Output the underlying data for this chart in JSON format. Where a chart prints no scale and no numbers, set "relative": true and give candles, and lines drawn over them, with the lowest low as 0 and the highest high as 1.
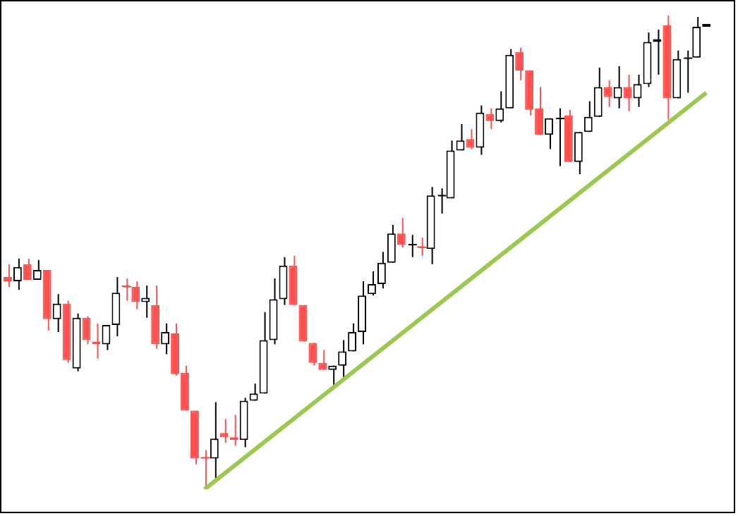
{
  "chart_data": {
    "type": "candlestick",
    "relative": true,
    "categories": [
      null,
      null,
      null,
      null,
      null,
      null,
      null,
      null,
      null,
      null,
      null,
      null,
      null,
      null,
      null,
      null,
      null,
      null,
      null,
      null,
      null,
      null,
      null,
      null,
      null,
      null,
      null,
      null,
      null,
      null,
      null,
      null,
      null,
      null,
      null,
      null,
      null,
      null,
      null,
      null,
      null,
      null,
      null,
      null,
      null,
      null,
      null,
      null,
      null,
      null,
      null,
      null,
      null,
      null,
      null,
      null,
      null,
      null,
      null,
      null,
      null,
      null,
      null,
      null,
      null,
      null,
      null,
      null,
      null,
      null,
      null,
      null
    ],
    "ohlc": [
      [
        0.448,
        0.475,
        0.427,
        0.439
      ],
      [
        0.439,
        0.487,
        0.421,
        0.469
      ],
      [
        0.475,
        0.487,
        0.442,
        0.442
      ],
      [
        0.442,
        0.484,
        0.442,
        0.463
      ],
      [
        0.463,
        0.463,
        0.335,
        0.359
      ],
      [
        0.359,
        0.412,
        0.332,
        0.392
      ],
      [
        0.392,
        0.398,
        0.267,
        0.273
      ],
      [
        0.255,
        0.371,
        0.249,
        0.362
      ],
      [
        0.362,
        0.365,
        0.306,
        0.315
      ],
      [
        0.312,
        0.35,
        0.276,
        0.306
      ],
      [
        0.306,
        0.347,
        0.294,
        0.347
      ],
      [
        0.347,
        0.448,
        0.323,
        0.415
      ],
      [
        0.43,
        0.445,
        0.398,
        0.427
      ],
      [
        0.427,
        0.439,
        0.38,
        0.395
      ],
      [
        0.395,
        0.43,
        0.362,
        0.404
      ],
      [
        0.389,
        0.43,
        0.297,
        0.306
      ],
      [
        0.306,
        0.35,
        0.285,
        0.332
      ],
      [
        0.329,
        0.35,
        0.24,
        0.243
      ],
      [
        0.246,
        0.261,
        0.166,
        0.166
      ],
      [
        0.166,
        0.166,
        0.053,
        0.065
      ],
      [
        0.068,
        0.083,
        0,
        0.065
      ],
      [
        0.065,
        0.184,
        0.018,
        0.107
      ],
      [
        0.119,
        0.148,
        0.098,
        0.11
      ],
      [
        0.11,
        0.157,
        0.092,
        0.104
      ],
      [
        0.104,
        0.193,
        0.089,
        0.187
      ],
      [
        0.187,
        0.223,
        0.187,
        0.202
      ],
      [
        0.202,
        0.374,
        0.202,
        0.315
      ],
      [
        0.315,
        0.445,
        0.306,
        0.401
      ],
      [
        0.401,
        0.49,
        0.389,
        0.472
      ],
      [
        0.472,
        0.493,
        0.389,
        0.389
      ],
      [
        0.389,
        0.389,
        0.312,
        0.312
      ],
      [
        0.309,
        0.309,
        0.261,
        0.267
      ],
      [
        0.267,
        0.294,
        0.252,
        0.252
      ],
      [
        0.252,
        0.261,
        0.217,
        0.261
      ],
      [
        0.261,
        0.315,
        0.231,
        0.291
      ],
      [
        0.291,
        0.35,
        0.291,
        0.332
      ],
      [
        0.332,
        0.439,
        0.306,
        0.409
      ],
      [
        0.412,
        0.46,
        0.409,
        0.433
      ],
      [
        0.433,
        0.501,
        0.424,
        0.478
      ],
      [
        0.478,
        0.558,
        0.478,
        0.54
      ],
      [
        0.54,
        0.573,
        0.51,
        0.516
      ],
      [
        0.519,
        0.537,
        0.49,
        0.519
      ],
      [
        0.513,
        0.531,
        0.493,
        0.51
      ],
      [
        0.507,
        0.638,
        0.475,
        0.62
      ],
      [
        0.62,
        0.635,
        0.582,
        0.62
      ],
      [
        0.614,
        0.736,
        0.614,
        0.715
      ],
      [
        0.715,
        0.771,
        0.715,
        0.736
      ],
      [
        0.739,
        0.76,
        0.718,
        0.721
      ],
      [
        0.721,
        0.81,
        0.706,
        0.795
      ],
      [
        0.792,
        0.804,
        0.76,
        0.777
      ],
      [
        0.777,
        0.84,
        0.774,
        0.804
      ],
      [
        0.804,
        0.929,
        0.804,
        0.917
      ],
      [
        0.923,
        0.932,
        0.863,
        0.884
      ],
      [
        0.884,
        0.884,
        0.789,
        0.801
      ],
      [
        0.804,
        0.849,
        0.748,
        0.748
      ],
      [
        0.748,
        0.783,
        0.718,
        0.783
      ],
      [
        0.783,
        0.804,
        0.682,
        0.783
      ],
      [
        0.789,
        0.801,
        0.691,
        0.691
      ],
      [
        0.691,
        0.754,
        0.665,
        0.754
      ],
      [
        0.754,
        0.819,
        0.754,
        0.786
      ],
      [
        0.786,
        0.89,
        0.786,
        0.849
      ],
      [
        0.849,
        0.863,
        0.807,
        0.828
      ],
      [
        0.825,
        0.893,
        0.804,
        0.849
      ],
      [
        0.849,
        0.875,
        0.798,
        0.825
      ],
      [
        0.825,
        0.875,
        0.807,
        0.855
      ],
      [
        0.855,
        0.964,
        0.849,
        0.944
      ],
      [
        0.944,
        0.97,
        0.875,
        0.95
      ],
      [
        0.979,
        1,
        0.78,
        0.825
      ],
      [
        0.825,
        0.926,
        0.825,
        0.908
      ],
      [
        0.911,
        0.926,
        0.837,
        0.911
      ],
      [
        0.911,
        0.997,
        0.911,
        0.976
      ],
      [
        0.976,
        0.982,
        0.976,
        0.982
      ]
    ],
    "colors": [
      "#ff5050",
      "#000000",
      "#ff5050",
      "#000000",
      "#ff5050",
      "#000000",
      "#ff5050",
      "#000000",
      "#ff5050",
      "#ff5050",
      "#000000",
      "#000000",
      "#ff5050",
      "#ff5050",
      "#000000",
      "#ff5050",
      "#000000",
      "#ff5050",
      "#ff5050",
      "#ff5050",
      "#ff5050",
      "#000000",
      "#ff5050",
      "#ff5050",
      "#000000",
      "#000000",
      "#000000",
      "#000000",
      "#000000",
      "#ff5050",
      "#ff5050",
      "#ff5050",
      "#ff5050",
      "#000000",
      "#000000",
      "#000000",
      "#000000",
      "#000000",
      "#000000",
      "#000000",
      "#ff5050",
      "#000000",
      "#ff5050",
      "#000000",
      "#000000",
      "#000000",
      "#000000",
      "#ff5050",
      "#000000",
      "#ff5050",
      "#000000",
      "#000000",
      "#ff5050",
      "#ff5050",
      "#ff5050",
      "#000000",
      "#000000",
      "#ff5050",
      "#000000",
      "#000000",
      "#000000",
      "#ff5050",
      "#000000",
      "#ff5050",
      "#000000",
      "#000000",
      "#000000",
      "#ff5050",
      "#000000",
      "#000000",
      "#000000",
      "#000000"
    ],
    "series": [
      {
        "type": "line",
        "color": "#9bc850",
        "values": [
          null,
          null,
          null,
          null,
          null,
          null,
          null,
          null,
          null,
          null,
          null,
          null,
          null,
          null,
          null,
          null,
          null,
          null,
          null,
          null,
          0,
          null,
          null,
          null,
          null,
          null,
          null,
          null,
          null,
          null,
          null,
          null,
          null,
          null,
          null,
          null,
          null,
          null,
          null,
          null,
          null,
          null,
          null,
          null,
          null,
          null,
          null,
          null,
          null,
          null,
          null,
          null,
          null,
          null,
          null,
          null,
          null,
          null,
          null,
          null,
          null,
          null,
          null,
          null,
          null,
          null,
          null,
          null,
          null,
          null,
          null,
          0.837
        ]
      }
    ]
  }
}
